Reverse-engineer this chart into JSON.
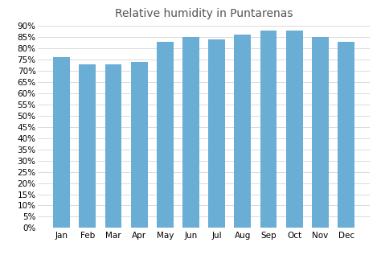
{
  "title": "Relative humidity in Puntarenas",
  "months": [
    "Jan",
    "Feb",
    "Mar",
    "Apr",
    "May",
    "Jun",
    "Jul",
    "Aug",
    "Sep",
    "Oct",
    "Nov",
    "Dec"
  ],
  "values": [
    76,
    73,
    73,
    74,
    83,
    85,
    84,
    86,
    88,
    88,
    85,
    83
  ],
  "bar_color": "#6aadd5",
  "background_color": "#ffffff",
  "grid_color": "#cccccc",
  "ylim": [
    0,
    90
  ],
  "ytick_step": 5,
  "title_fontsize": 10,
  "tick_fontsize": 7.5
}
